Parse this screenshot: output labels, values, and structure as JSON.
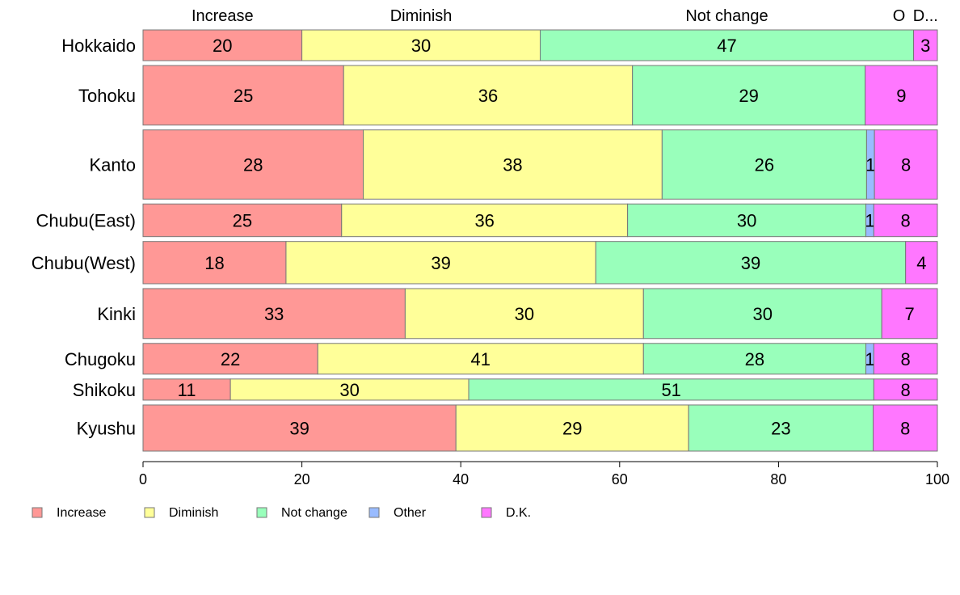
{
  "chart_data": {
    "type": "bar",
    "orientation": "horizontal",
    "stacked": true,
    "categories": [
      "Hokkaido",
      "Tohoku",
      "Kanto",
      "Chubu(East)",
      "Chubu(West)",
      "Kinki",
      "Chugoku",
      "Shikoku",
      "Kyushu"
    ],
    "series": [
      {
        "name": "Increase",
        "values": [
          20,
          25,
          28,
          25,
          18,
          33,
          22,
          11,
          39
        ],
        "color": "#ff9896"
      },
      {
        "name": "Diminish",
        "values": [
          30,
          36,
          38,
          36,
          39,
          30,
          41,
          30,
          29
        ],
        "color": "#ffff99"
      },
      {
        "name": "Not change",
        "values": [
          47,
          29,
          26,
          30,
          39,
          30,
          28,
          51,
          23
        ],
        "color": "#99ffbb"
      },
      {
        "name": "Other",
        "values": [
          0,
          0,
          1,
          1,
          0,
          0,
          1,
          0,
          0
        ],
        "color": "#99bbff"
      },
      {
        "name": "D.K.",
        "values": [
          3,
          9,
          8,
          8,
          4,
          7,
          8,
          8,
          8
        ],
        "color": "#ff77ff"
      }
    ],
    "value_labels": [
      [
        "20",
        "30",
        "47",
        "",
        "3"
      ],
      [
        "25",
        "36",
        "29",
        "",
        "9"
      ],
      [
        "28",
        "38",
        "26",
        "1",
        "8"
      ],
      [
        "25",
        "36",
        "30",
        "1",
        "8"
      ],
      [
        "18",
        "39",
        "39",
        "",
        "4"
      ],
      [
        "33",
        "30",
        "30",
        "",
        "7"
      ],
      [
        "22",
        "41",
        "28",
        "1",
        "8"
      ],
      [
        "11",
        "30",
        "51",
        "",
        "8"
      ],
      [
        "39",
        "29",
        "23",
        "",
        "8"
      ]
    ],
    "bar_weights": [
      0.8,
      1.55,
      1.8,
      0.85,
      1.1,
      1.3,
      0.8,
      0.55,
      1.2
    ],
    "top_labels": [
      "Increase",
      "Diminish",
      "Not change",
      "O",
      "D..."
    ],
    "xlim": [
      0,
      100
    ],
    "xticks": [
      "0",
      "20",
      "40",
      "60",
      "80",
      "100"
    ],
    "legend_position": "bottom-left",
    "title": "",
    "xlabel": "",
    "ylabel": ""
  }
}
